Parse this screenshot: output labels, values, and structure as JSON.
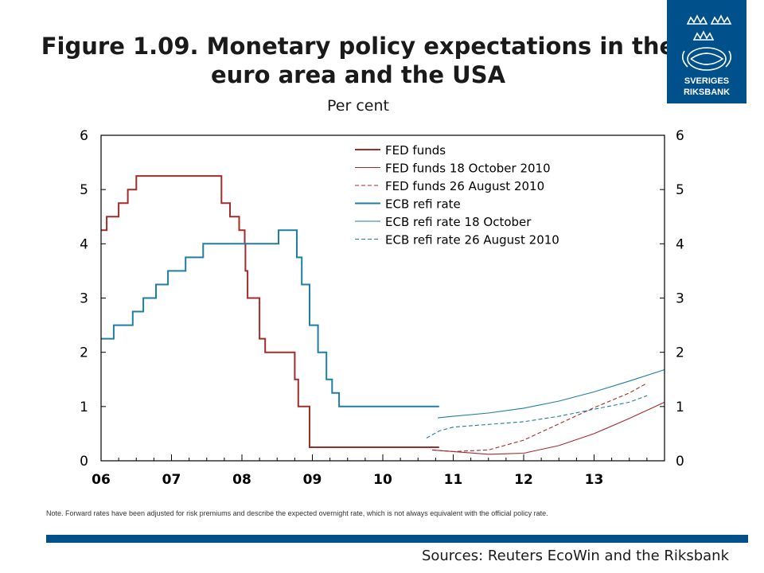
{
  "header": {
    "title": "Figure 1.09. Monetary policy expectations in the euro area and the USA",
    "subtitle": "Per cent"
  },
  "logo": {
    "line1": "SVERIGES",
    "line2": "RIKSBANK"
  },
  "note": "Note. Forward rates have been adjusted for risk premiums and describe the expected overnight rate, which is not always equivalent with the official policy rate.",
  "sources": "Sources: Reuters EcoWin and the Riksbank",
  "colors": {
    "fed": "#a52a2a",
    "ecb": "#1f7ea3",
    "brand": "#00508c"
  },
  "chart_data": {
    "type": "line",
    "xlim": [
      2006.0,
      2014.0
    ],
    "ylim": [
      0,
      6
    ],
    "x_ticks": [
      2006,
      2007,
      2008,
      2009,
      2010,
      2011,
      2012,
      2013
    ],
    "x_tick_labels": [
      "06",
      "07",
      "08",
      "09",
      "10",
      "11",
      "12",
      "13"
    ],
    "y_ticks": [
      0,
      1,
      2,
      3,
      4,
      5,
      6
    ],
    "y_tick_labels": [
      "0",
      "1",
      "2",
      "3",
      "4",
      "5",
      "6"
    ],
    "legend_position": "top-right",
    "series": [
      {
        "name": "FED funds",
        "style": "step",
        "color": "#a52a2a",
        "dash": "solid",
        "points": [
          [
            2006.0,
            4.25
          ],
          [
            2006.08,
            4.5
          ],
          [
            2006.25,
            4.75
          ],
          [
            2006.38,
            5.0
          ],
          [
            2006.5,
            5.25
          ],
          [
            2007.71,
            4.75
          ],
          [
            2007.83,
            4.5
          ],
          [
            2007.96,
            4.25
          ],
          [
            2008.04,
            4.0
          ],
          [
            2008.05,
            3.5
          ],
          [
            2008.08,
            3.0
          ],
          [
            2008.25,
            2.25
          ],
          [
            2008.33,
            2.0
          ],
          [
            2008.75,
            1.5
          ],
          [
            2008.8,
            1.0
          ],
          [
            2008.96,
            0.25
          ],
          [
            2010.8,
            0.25
          ]
        ]
      },
      {
        "name": "FED funds 18 October 2010",
        "style": "line",
        "color": "#a52a2a",
        "dash": "solid",
        "points": [
          [
            2010.7,
            0.2
          ],
          [
            2011.0,
            0.17
          ],
          [
            2011.5,
            0.12
          ],
          [
            2012.0,
            0.14
          ],
          [
            2012.5,
            0.28
          ],
          [
            2013.0,
            0.5
          ],
          [
            2013.5,
            0.78
          ],
          [
            2014.0,
            1.08
          ]
        ]
      },
      {
        "name": "FED funds 26 August 2010",
        "style": "line",
        "color": "#a52a2a",
        "dash": "dashed",
        "points": [
          [
            2010.7,
            0.2
          ],
          [
            2011.0,
            0.17
          ],
          [
            2011.5,
            0.2
          ],
          [
            2012.0,
            0.38
          ],
          [
            2012.5,
            0.68
          ],
          [
            2013.0,
            0.98
          ],
          [
            2013.5,
            1.25
          ],
          [
            2013.75,
            1.43
          ]
        ]
      },
      {
        "name": "ECB refi rate",
        "style": "step",
        "color": "#1f7ea3",
        "dash": "solid",
        "points": [
          [
            2006.0,
            2.25
          ],
          [
            2006.18,
            2.5
          ],
          [
            2006.45,
            2.75
          ],
          [
            2006.6,
            3.0
          ],
          [
            2006.78,
            3.25
          ],
          [
            2006.95,
            3.5
          ],
          [
            2007.2,
            3.75
          ],
          [
            2007.45,
            4.0
          ],
          [
            2008.52,
            4.25
          ],
          [
            2008.78,
            3.75
          ],
          [
            2008.85,
            3.25
          ],
          [
            2008.96,
            2.5
          ],
          [
            2009.08,
            2.0
          ],
          [
            2009.2,
            1.5
          ],
          [
            2009.28,
            1.25
          ],
          [
            2009.38,
            1.0
          ],
          [
            2010.8,
            1.0
          ]
        ]
      },
      {
        "name": "ECB refi rate 18 October",
        "style": "line",
        "color": "#1f7ea3",
        "dash": "solid",
        "points": [
          [
            2010.78,
            0.79
          ],
          [
            2011.0,
            0.82
          ],
          [
            2011.5,
            0.88
          ],
          [
            2012.0,
            0.97
          ],
          [
            2012.5,
            1.1
          ],
          [
            2013.0,
            1.27
          ],
          [
            2013.5,
            1.47
          ],
          [
            2014.0,
            1.68
          ]
        ]
      },
      {
        "name": "ECB refi rate 26 August 2010",
        "style": "line",
        "color": "#1f7ea3",
        "dash": "dashed",
        "points": [
          [
            2010.62,
            0.42
          ],
          [
            2010.8,
            0.55
          ],
          [
            2011.0,
            0.62
          ],
          [
            2011.5,
            0.67
          ],
          [
            2012.0,
            0.72
          ],
          [
            2012.5,
            0.82
          ],
          [
            2013.0,
            0.95
          ],
          [
            2013.5,
            1.08
          ],
          [
            2013.75,
            1.2
          ]
        ]
      }
    ]
  }
}
